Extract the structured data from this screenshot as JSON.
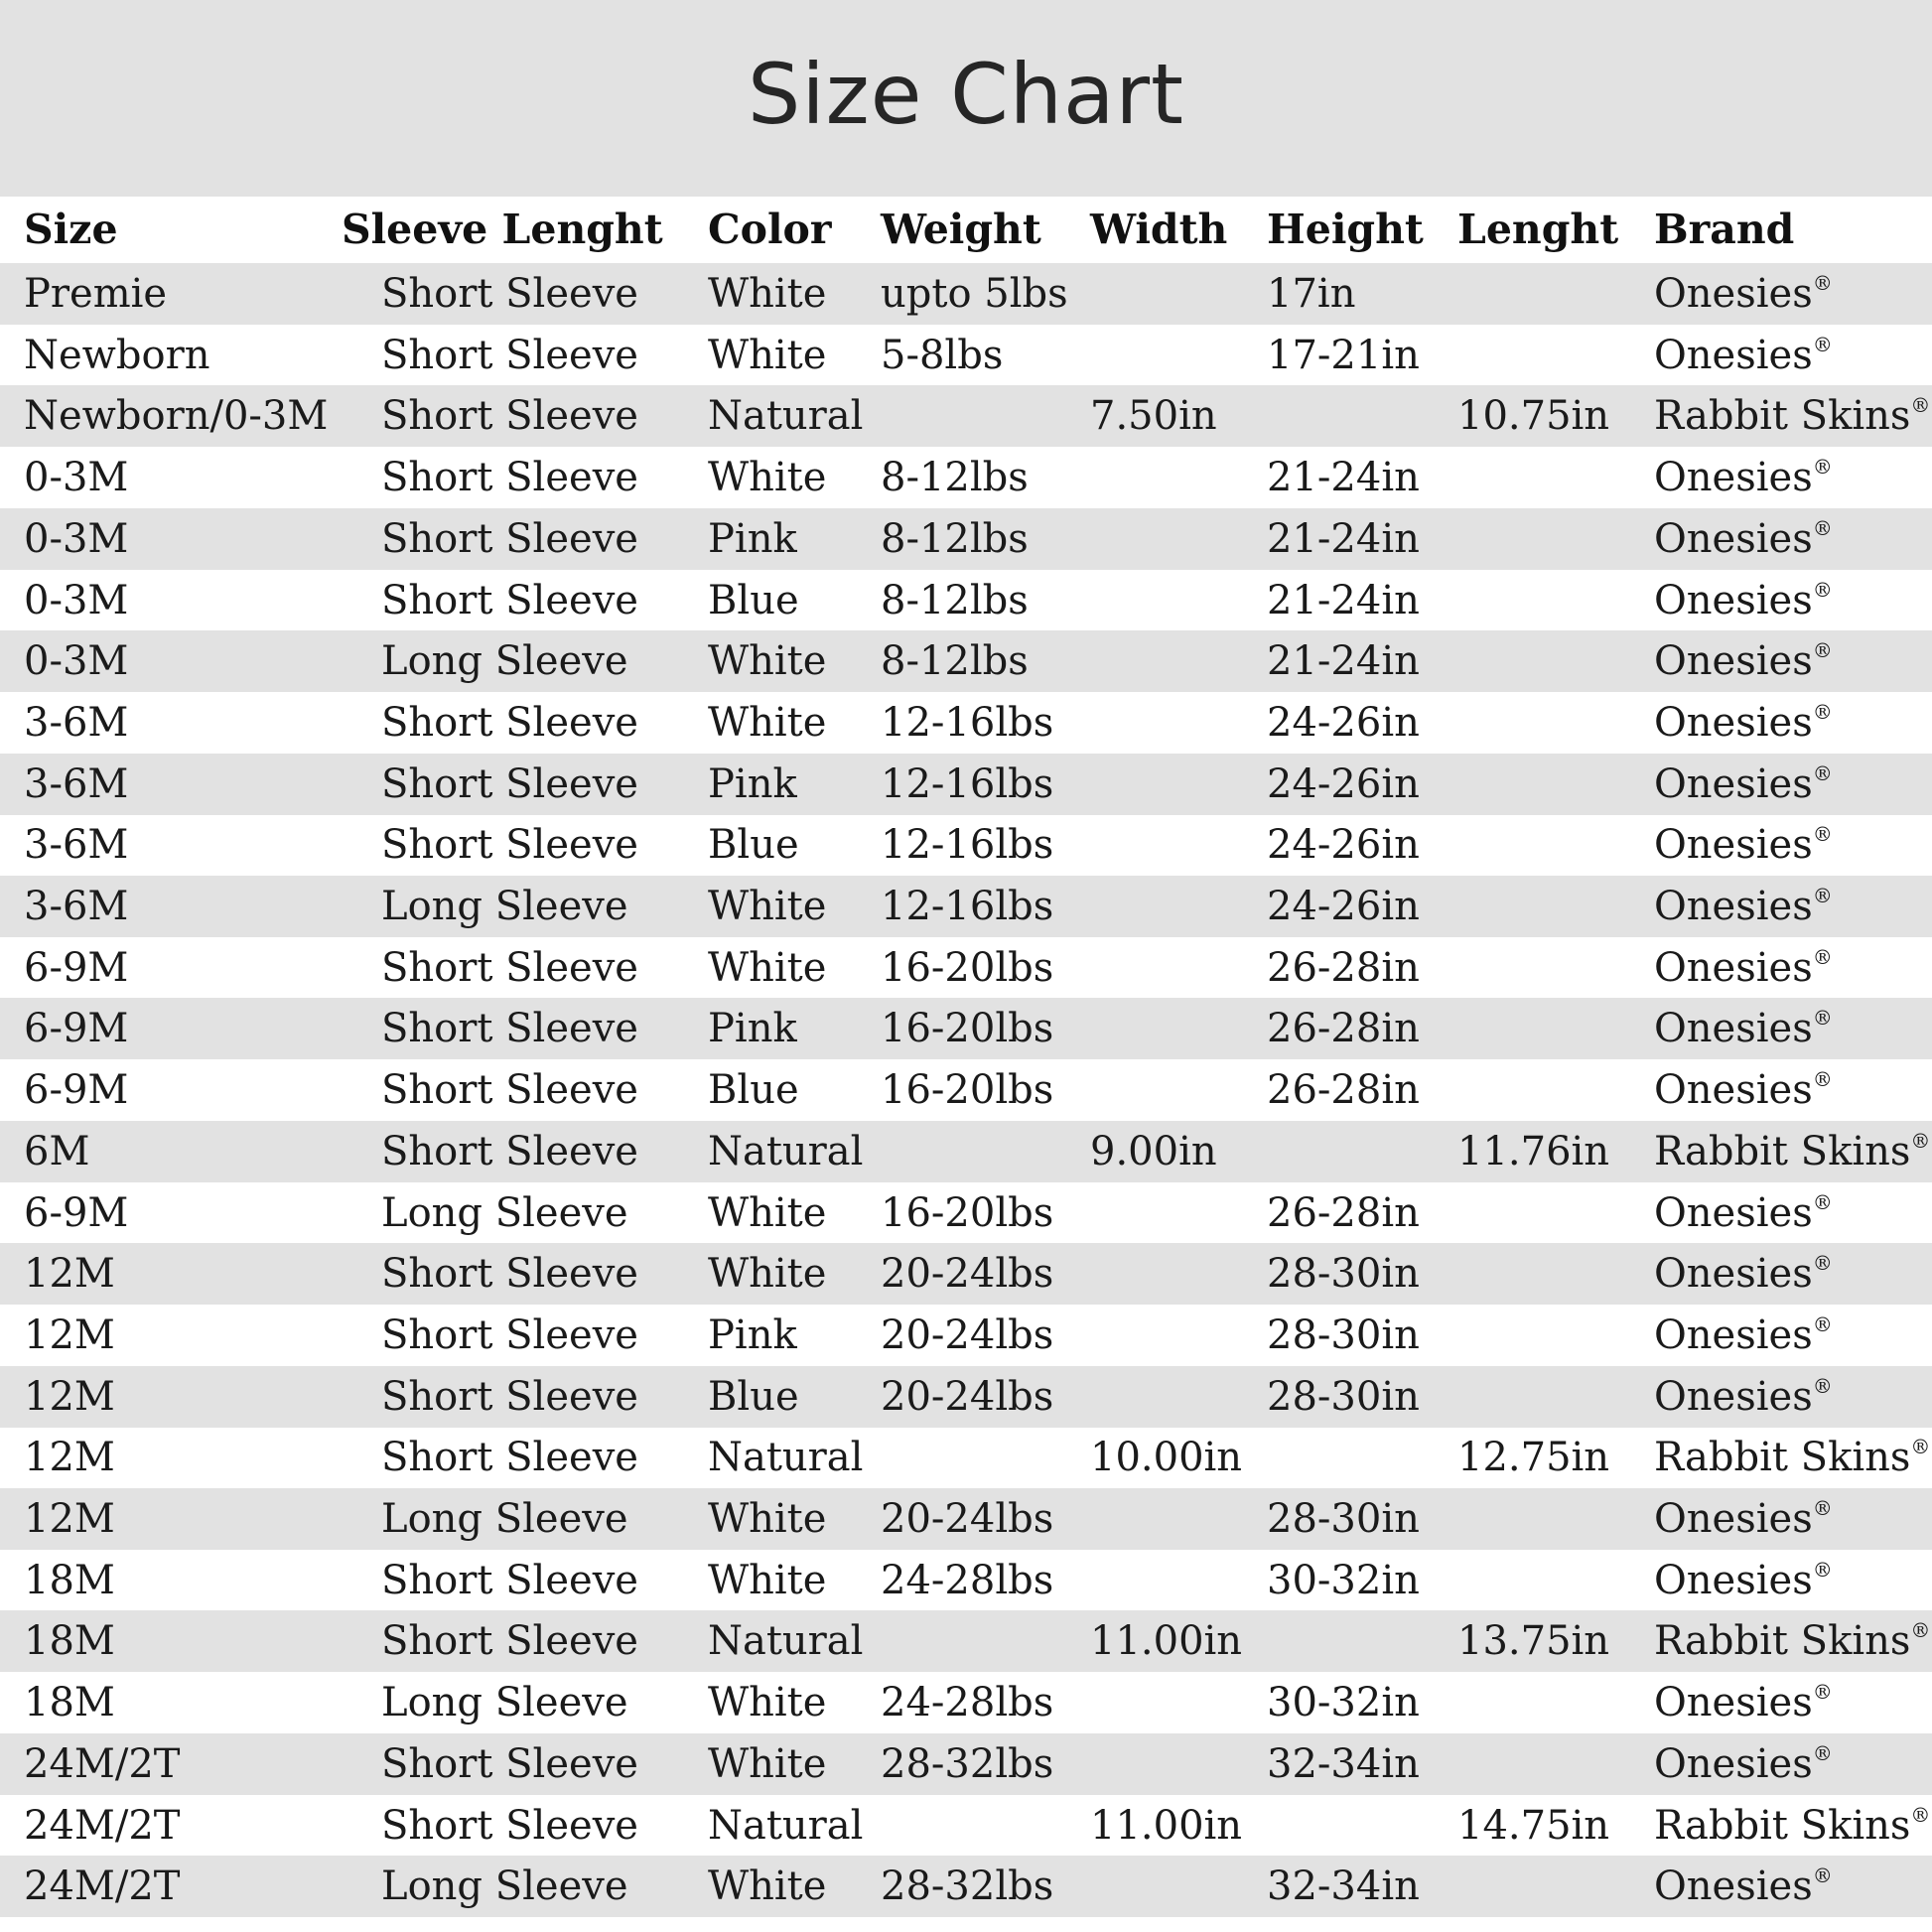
{
  "title": "Size Chart",
  "columns": [
    "Size",
    "Sleeve Lenght",
    "Color",
    "Weight",
    "Width",
    "Height",
    "Lenght",
    "Brand"
  ],
  "rows": [
    [
      "Premie",
      "Short Sleeve",
      "White",
      "upto 5lbs",
      "",
      "17in",
      "",
      "Onesies®"
    ],
    [
      "Newborn",
      "Short Sleeve",
      "White",
      "5-8lbs",
      "",
      "17-21in",
      "",
      "Onesies®"
    ],
    [
      "Newborn/0-3M",
      "Short Sleeve",
      "Natural",
      "",
      "7.50in",
      "",
      "10.75in",
      "Rabbit Skins®"
    ],
    [
      "0-3M",
      "Short Sleeve",
      "White",
      "8-12lbs",
      "",
      "21-24in",
      "",
      "Onesies®"
    ],
    [
      "0-3M",
      "Short Sleeve",
      "Pink",
      "8-12lbs",
      "",
      "21-24in",
      "",
      "Onesies®"
    ],
    [
      "0-3M",
      "Short Sleeve",
      "Blue",
      "8-12lbs",
      "",
      "21-24in",
      "",
      "Onesies®"
    ],
    [
      "0-3M",
      "Long Sleeve",
      "White",
      "8-12lbs",
      "",
      "21-24in",
      "",
      "Onesies®"
    ],
    [
      "3-6M",
      "Short Sleeve",
      "White",
      "12-16lbs",
      "",
      "24-26in",
      "",
      "Onesies®"
    ],
    [
      "3-6M",
      "Short Sleeve",
      "Pink",
      "12-16lbs",
      "",
      "24-26in",
      "",
      "Onesies®"
    ],
    [
      "3-6M",
      "Short Sleeve",
      "Blue",
      "12-16lbs",
      "",
      "24-26in",
      "",
      "Onesies®"
    ],
    [
      "3-6M",
      "Long Sleeve",
      "White",
      "12-16lbs",
      "",
      "24-26in",
      "",
      "Onesies®"
    ],
    [
      "6-9M",
      "Short Sleeve",
      "White",
      "16-20lbs",
      "",
      "26-28in",
      "",
      "Onesies®"
    ],
    [
      "6-9M",
      "Short Sleeve",
      "Pink",
      "16-20lbs",
      "",
      "26-28in",
      "",
      "Onesies®"
    ],
    [
      "6-9M",
      "Short Sleeve",
      "Blue",
      "16-20lbs",
      "",
      "26-28in",
      "",
      "Onesies®"
    ],
    [
      "6M",
      "Short Sleeve",
      "Natural",
      "",
      "9.00in",
      "",
      "11.76in",
      "Rabbit Skins®"
    ],
    [
      "6-9M",
      "Long Sleeve",
      "White",
      "16-20lbs",
      "",
      "26-28in",
      "",
      "Onesies®"
    ],
    [
      "12M",
      "Short Sleeve",
      "White",
      "20-24lbs",
      "",
      "28-30in",
      "",
      "Onesies®"
    ],
    [
      "12M",
      "Short Sleeve",
      "Pink",
      "20-24lbs",
      "",
      "28-30in",
      "",
      "Onesies®"
    ],
    [
      "12M",
      "Short Sleeve",
      "Blue",
      "20-24lbs",
      "",
      "28-30in",
      "",
      "Onesies®"
    ],
    [
      "12M",
      "Short Sleeve",
      "Natural",
      "",
      "10.00in",
      "",
      "12.75in",
      "Rabbit Skins®"
    ],
    [
      "12M",
      "Long Sleeve",
      "White",
      "20-24lbs",
      "",
      "28-30in",
      "",
      "Onesies®"
    ],
    [
      "18M",
      "Short Sleeve",
      "White",
      "24-28lbs",
      "",
      "30-32in",
      "",
      "Onesies®"
    ],
    [
      "18M",
      "Short Sleeve",
      "Natural",
      "",
      "11.00in",
      "",
      "13.75in",
      "Rabbit Skins®"
    ],
    [
      "18M",
      "Long Sleeve",
      "White",
      "24-28lbs",
      "",
      "30-32in",
      "",
      "Onesies®"
    ],
    [
      "24M/2T",
      "Short Sleeve",
      "White",
      "28-32lbs",
      "",
      "32-34in",
      "",
      "Onesies®"
    ],
    [
      "24M/2T",
      "Short Sleeve",
      "Natural",
      "",
      "11.00in",
      "",
      "14.75in",
      "Rabbit Skins®"
    ],
    [
      "24M/2T",
      "Long Sleeve",
      "White",
      "28-32lbs",
      "",
      "32-34in",
      "",
      "Onesies®"
    ]
  ]
}
